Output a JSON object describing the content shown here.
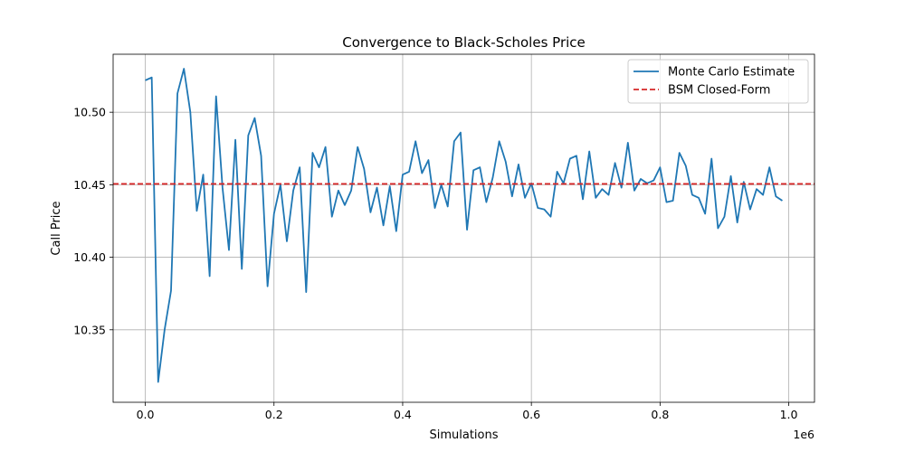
{
  "chart_data": {
    "type": "line",
    "title": "Convergence to Black-Scholes Price",
    "xlabel": "Simulations",
    "ylabel": "Call Price",
    "x_offset_label": "1e6",
    "xlim": [
      -0.05,
      1.04
    ],
    "ylim": [
      10.3,
      10.54
    ],
    "x_ticks": [
      {
        "value": 0.0,
        "label": "0.0"
      },
      {
        "value": 0.2,
        "label": "0.2"
      },
      {
        "value": 0.4,
        "label": "0.4"
      },
      {
        "value": 0.6,
        "label": "0.6"
      },
      {
        "value": 0.8,
        "label": "0.8"
      },
      {
        "value": 1.0,
        "label": "1.0"
      }
    ],
    "y_ticks": [
      {
        "value": 10.35,
        "label": "10.35"
      },
      {
        "value": 10.4,
        "label": "10.40"
      },
      {
        "value": 10.45,
        "label": "10.45"
      },
      {
        "value": 10.5,
        "label": "10.50"
      }
    ],
    "grid": true,
    "legend_position": "top-right",
    "series": [
      {
        "name": "Monte Carlo Estimate",
        "style": "solid",
        "color": "#1f77b4",
        "x": [
          0.0,
          0.01,
          0.02,
          0.03,
          0.04,
          0.05,
          0.06,
          0.07,
          0.08,
          0.09,
          0.1,
          0.11,
          0.12,
          0.13,
          0.14,
          0.15,
          0.16,
          0.17,
          0.18,
          0.19,
          0.2,
          0.21,
          0.22,
          0.23,
          0.24,
          0.25,
          0.26,
          0.27,
          0.28,
          0.29,
          0.3,
          0.31,
          0.32,
          0.33,
          0.34,
          0.35,
          0.36,
          0.37,
          0.38,
          0.39,
          0.4,
          0.41,
          0.42,
          0.43,
          0.44,
          0.45,
          0.46,
          0.47,
          0.48,
          0.49,
          0.5,
          0.51,
          0.52,
          0.53,
          0.54,
          0.55,
          0.56,
          0.57,
          0.58,
          0.59,
          0.6,
          0.61,
          0.62,
          0.63,
          0.64,
          0.65,
          0.66,
          0.67,
          0.68,
          0.69,
          0.7,
          0.71,
          0.72,
          0.73,
          0.74,
          0.75,
          0.76,
          0.77,
          0.78,
          0.79,
          0.8,
          0.81,
          0.82,
          0.83,
          0.84,
          0.85,
          0.86,
          0.87,
          0.88,
          0.89,
          0.9,
          0.91,
          0.92,
          0.93,
          0.94,
          0.95,
          0.96,
          0.97,
          0.98,
          0.99
        ],
        "y": [
          10.522,
          10.524,
          10.314,
          10.35,
          10.377,
          10.513,
          10.53,
          10.5,
          10.432,
          10.457,
          10.387,
          10.511,
          10.448,
          10.405,
          10.481,
          10.392,
          10.484,
          10.496,
          10.47,
          10.38,
          10.43,
          10.45,
          10.411,
          10.446,
          10.462,
          10.376,
          10.472,
          10.462,
          10.476,
          10.428,
          10.446,
          10.436,
          10.446,
          10.476,
          10.461,
          10.431,
          10.448,
          10.422,
          10.449,
          10.418,
          10.457,
          10.459,
          10.48,
          10.458,
          10.467,
          10.434,
          10.45,
          10.435,
          10.48,
          10.486,
          10.419,
          10.46,
          10.462,
          10.438,
          10.455,
          10.48,
          10.466,
          10.442,
          10.464,
          10.441,
          10.451,
          10.434,
          10.433,
          10.428,
          10.459,
          10.451,
          10.468,
          10.47,
          10.44,
          10.473,
          10.441,
          10.447,
          10.443,
          10.465,
          10.448,
          10.479,
          10.446,
          10.454,
          10.451,
          10.453,
          10.462,
          10.438,
          10.439,
          10.472,
          10.463,
          10.443,
          10.441,
          10.43,
          10.468,
          10.42,
          10.428,
          10.456,
          10.424,
          10.452,
          10.433,
          10.447,
          10.443,
          10.462,
          10.442,
          10.439
        ]
      },
      {
        "name": "BSM Closed-Form",
        "style": "dashed",
        "color": "#d62728",
        "value": 10.4506
      }
    ]
  }
}
